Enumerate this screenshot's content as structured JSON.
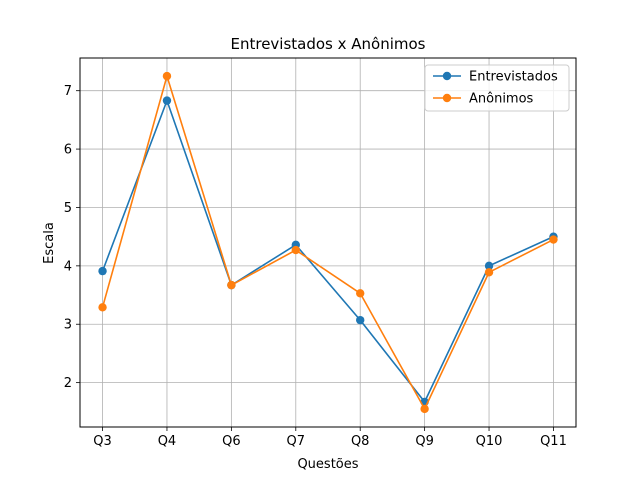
{
  "chart_data": {
    "type": "line",
    "title": "Entrevistados x Anônimos",
    "xlabel": "Questões",
    "ylabel": "Escala",
    "categories": [
      "Q3",
      "Q4",
      "Q6",
      "Q7",
      "Q8",
      "Q9",
      "Q10",
      "Q11"
    ],
    "series": [
      {
        "name": "Entrevistados",
        "color": "#1f77b4",
        "values": [
          3.91,
          6.83,
          3.67,
          4.36,
          3.07,
          1.67,
          4.0,
          4.5
        ]
      },
      {
        "name": "Anônimos",
        "color": "#ff7f0e",
        "values": [
          3.29,
          7.25,
          3.67,
          4.27,
          3.53,
          1.55,
          3.89,
          4.45
        ]
      }
    ],
    "ylim": [
      1.24,
      7.56
    ],
    "yticks": [
      2,
      3,
      4,
      5,
      6,
      7
    ],
    "grid": true,
    "legend_position": "upper right",
    "markers": true
  }
}
